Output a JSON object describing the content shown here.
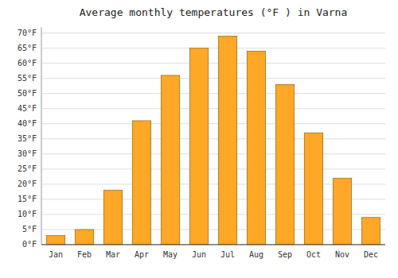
{
  "chart_data": {
    "type": "bar",
    "title": "Average monthly temperatures (°F ) in Varna",
    "categories": [
      "Jan",
      "Feb",
      "Mar",
      "Apr",
      "May",
      "Jun",
      "Jul",
      "Aug",
      "Sep",
      "Oct",
      "Nov",
      "Dec"
    ],
    "values": [
      3,
      5,
      18,
      41,
      56,
      65,
      69,
      64,
      53,
      37,
      22,
      9
    ],
    "color": "#FFA726",
    "ylim": [
      0,
      72
    ],
    "yticks": [
      {
        "value": 0,
        "label": "0°F"
      },
      {
        "value": 5,
        "label": "5°F"
      },
      {
        "value": 10,
        "label": "10°F"
      },
      {
        "value": 15,
        "label": "15°F"
      },
      {
        "value": 20,
        "label": "20°F"
      },
      {
        "value": 25,
        "label": "25°F"
      },
      {
        "value": 30,
        "label": "30°F"
      },
      {
        "value": 35,
        "label": "35°F"
      },
      {
        "value": 40,
        "label": "40°F"
      },
      {
        "value": 45,
        "label": "45°F"
      },
      {
        "value": 50,
        "label": "50°F"
      },
      {
        "value": 55,
        "label": "55°F"
      },
      {
        "value": 60,
        "label": "60°F"
      },
      {
        "value": 65,
        "label": "65°F"
      },
      {
        "value": 70,
        "label": "70°F"
      }
    ],
    "grid": true
  }
}
